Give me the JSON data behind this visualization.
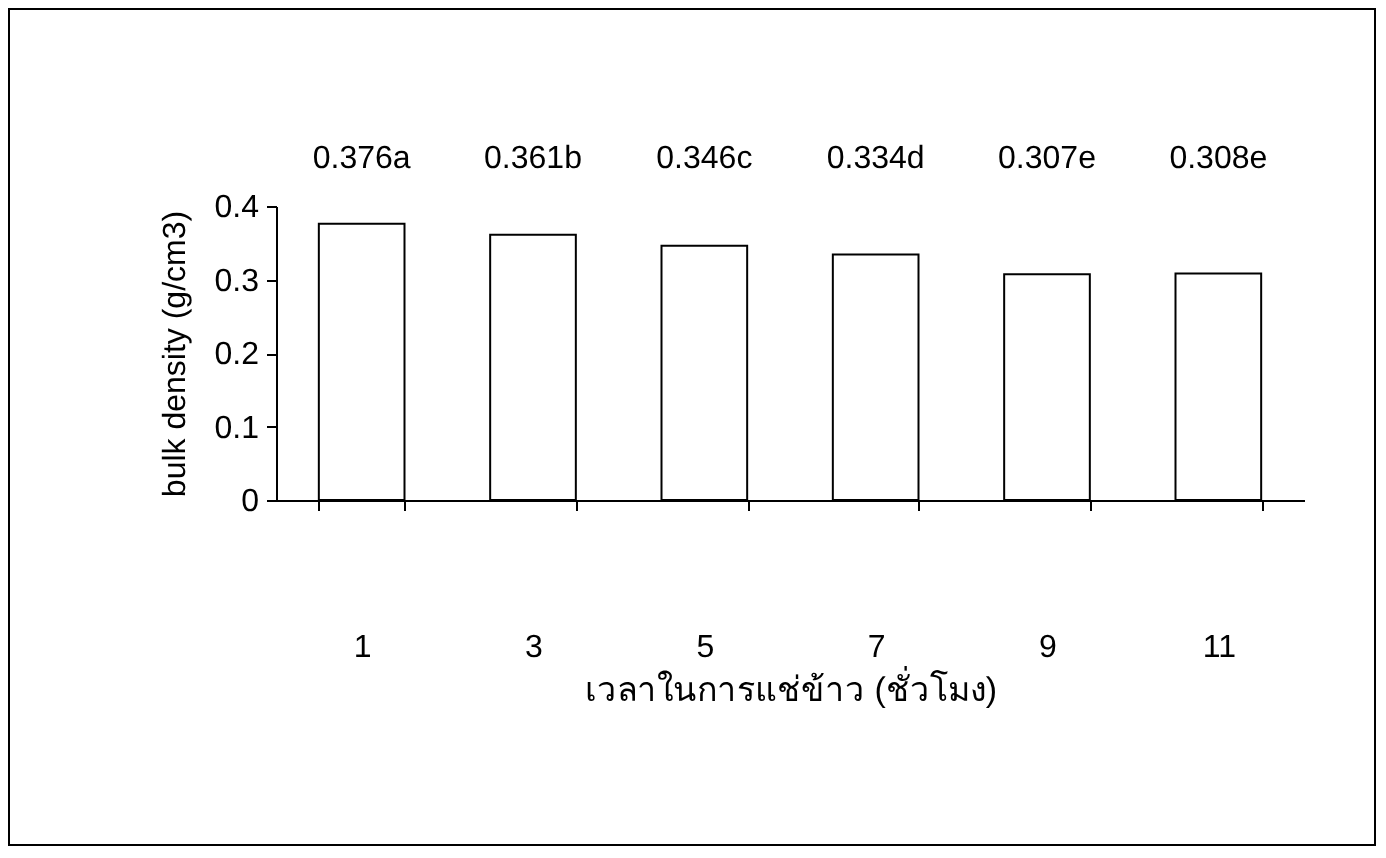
{
  "chart_data": {
    "type": "bar",
    "xlabel": "เวลาในการแช่ข้าว (ชั่วโมง)",
    "ylabel": "bulk density (g/cm3)",
    "categories": [
      "1",
      "3",
      "5",
      "7",
      "9",
      "11"
    ],
    "values": [
      0.376,
      0.361,
      0.346,
      0.334,
      0.307,
      0.308
    ],
    "value_labels": [
      "0.376a",
      "0.361b",
      "0.346c",
      "0.334d",
      "0.307e",
      "0.308e"
    ],
    "color": "#ffffff",
    "ylim": [
      0,
      0.4
    ],
    "yticks": [
      0,
      0.1,
      0.2,
      0.3,
      0.4
    ],
    "grid": false
  }
}
